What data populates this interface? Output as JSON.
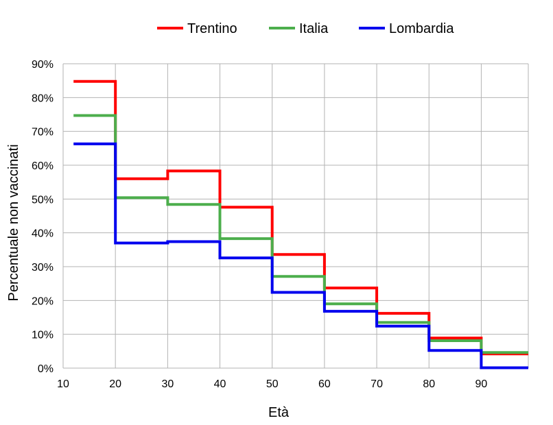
{
  "chart_data": {
    "type": "line",
    "step": true,
    "title": "",
    "xlabel": "Età",
    "ylabel": "Percentuale non vaccinati",
    "xlim": [
      10,
      99
    ],
    "ylim": [
      0,
      90
    ],
    "x_ticks": [
      "10",
      "20",
      "30",
      "40",
      "50",
      "60",
      "70",
      "80",
      "90"
    ],
    "y_ticks": [
      "0%",
      "10%",
      "20%",
      "30%",
      "40%",
      "50%",
      "60%",
      "70%",
      "80%",
      "90%"
    ],
    "grid": true,
    "legend_position": "top",
    "bin_edges": [
      12,
      20,
      30,
      40,
      50,
      60,
      70,
      80,
      90,
      99
    ],
    "series": [
      {
        "name": "Trentino",
        "color": "#ff0000",
        "values": [
          84.8,
          56.0,
          58.3,
          47.6,
          33.6,
          23.7,
          16.2,
          8.9,
          4.2
        ]
      },
      {
        "name": "Italia",
        "color": "#4cae4c",
        "values": [
          74.7,
          50.4,
          48.4,
          38.3,
          27.1,
          19.0,
          13.5,
          8.1,
          4.6
        ]
      },
      {
        "name": "Lombardia",
        "color": "#0000ee",
        "values": [
          66.3,
          37.0,
          37.4,
          32.6,
          22.4,
          16.8,
          12.4,
          5.2,
          0.1
        ]
      }
    ]
  }
}
